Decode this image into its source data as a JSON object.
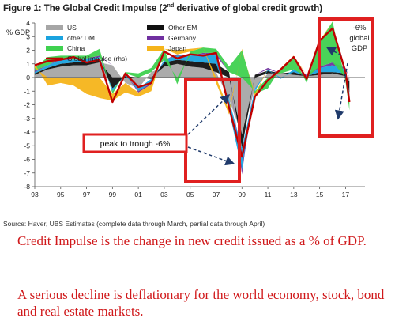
{
  "figure": {
    "title_pre": "Figure 1: The Global Credit Impulse (2",
    "title_sup": "nd",
    "title_post": " derivative of global credit growth)"
  },
  "chart_data": {
    "type": "area",
    "title": "Figure 1: The Global Credit Impulse (2nd derivative of global credit growth)",
    "ylabel": "% GDP",
    "ylim": [
      -8,
      4
    ],
    "yticks": [
      4,
      3,
      2,
      1,
      0,
      -1,
      -2,
      -3,
      -4,
      -5,
      -6,
      -7,
      -8
    ],
    "xlim": [
      1993,
      2018.5
    ],
    "xticks": [
      "93",
      "95",
      "97",
      "99",
      "01",
      "03",
      "05",
      "07",
      "09",
      "11",
      "13",
      "15",
      "17"
    ],
    "x": [
      1993,
      1994,
      1995,
      1996,
      1997,
      1998,
      1999,
      2000,
      2001,
      2002,
      2003,
      2004,
      2005,
      2006,
      2007,
      2008,
      2009,
      2010,
      2011,
      2012,
      2013,
      2014,
      2015,
      2016,
      2017,
      2017.3
    ],
    "series": [
      {
        "name": "US",
        "color": "#a6a6a6",
        "values": [
          0.2,
          0.6,
          0.8,
          0.9,
          0.9,
          1.1,
          0.9,
          -0.4,
          -0.8,
          0.4,
          0.8,
          1.0,
          0.8,
          0.7,
          0.4,
          -1.6,
          -4.2,
          -0.8,
          0.3,
          0.3,
          0.2,
          0.1,
          0.2,
          0.3,
          0.1,
          -0.3
        ]
      },
      {
        "name": "Other EM",
        "color": "#111111",
        "values": [
          0.1,
          0.1,
          0.2,
          0.2,
          0.2,
          0.2,
          -0.8,
          0.1,
          0.0,
          -0.1,
          0.3,
          0.3,
          0.4,
          0.4,
          0.6,
          0.4,
          -1.0,
          0.2,
          0.2,
          0.0,
          0.2,
          0.0,
          0.2,
          0.1,
          0.2,
          -0.8
        ]
      },
      {
        "name": "other DM",
        "color": "#1aa3df",
        "values": [
          0.1,
          0.2,
          0.3,
          0.2,
          0.3,
          0.2,
          -0.2,
          0.2,
          -0.2,
          -0.3,
          0.2,
          0.3,
          0.4,
          0.6,
          0.6,
          -0.8,
          -1.6,
          -0.2,
          0.1,
          -0.1,
          0.2,
          0.0,
          0.3,
          0.5,
          0.3,
          -0.3
        ]
      },
      {
        "name": "Germany",
        "color": "#7030a0",
        "values": [
          0.1,
          0.0,
          0.1,
          0.0,
          0.0,
          0.1,
          0.0,
          0.0,
          -0.1,
          -0.1,
          0.0,
          0.1,
          0.0,
          0.1,
          0.2,
          0.0,
          -0.3,
          0.0,
          0.1,
          0.0,
          0.0,
          0.1,
          0.1,
          0.2,
          0.1,
          0.0
        ]
      },
      {
        "name": "China",
        "color": "#3fd14f",
        "values": [
          0.2,
          0.6,
          0.2,
          0.3,
          0.2,
          0.5,
          -0.2,
          0.1,
          0.3,
          0.3,
          0.8,
          -0.5,
          0.3,
          0.4,
          0.3,
          0.4,
          2.0,
          -0.2,
          -0.8,
          0.4,
          0.9,
          -0.4,
          1.8,
          3.0,
          -0.3,
          -1.0
        ]
      },
      {
        "name": "Japan",
        "color": "#f5b41a",
        "values": [
          0.3,
          -0.6,
          -0.4,
          -0.6,
          -1.2,
          -1.5,
          -0.5,
          -0.7,
          -0.3,
          -0.5,
          0.0,
          0.3,
          0.2,
          0.0,
          -0.4,
          -0.3,
          0.1,
          -0.2,
          0.0,
          0.0,
          0.1,
          0.0,
          0.1,
          0.0,
          0.0,
          0.0
        ]
      }
    ],
    "line": {
      "name": "Global impulse (rhs)",
      "color": "#c00000",
      "values": [
        0.9,
        1.2,
        1.3,
        1.5,
        1.1,
        1.3,
        -1.8,
        0.3,
        -0.7,
        -0.4,
        1.9,
        1.4,
        1.7,
        1.6,
        1.8,
        -2.2,
        -5.8,
        -1.4,
        -0.2,
        0.6,
        1.5,
        -0.1,
        2.7,
        3.6,
        0.4,
        -1.8
      ]
    },
    "annotations": {
      "peak_to_trough": "peak to trough -6%",
      "gdp_box": [
        "-6%",
        "global",
        "GDP"
      ]
    },
    "legend": "top-left"
  },
  "source": "Source:   Haver, UBS Estimates (complete data through March, partial data through April)",
  "captions": {
    "line1": "Credit Impulse is the change in new credit issued as a % of GDP.",
    "line2": "A serious decline is deflationary for the world economy, stock, bond and real estate markets."
  },
  "colors": {
    "highlight": "#e02020",
    "axis": "#333333",
    "caption": "#d0191b"
  }
}
